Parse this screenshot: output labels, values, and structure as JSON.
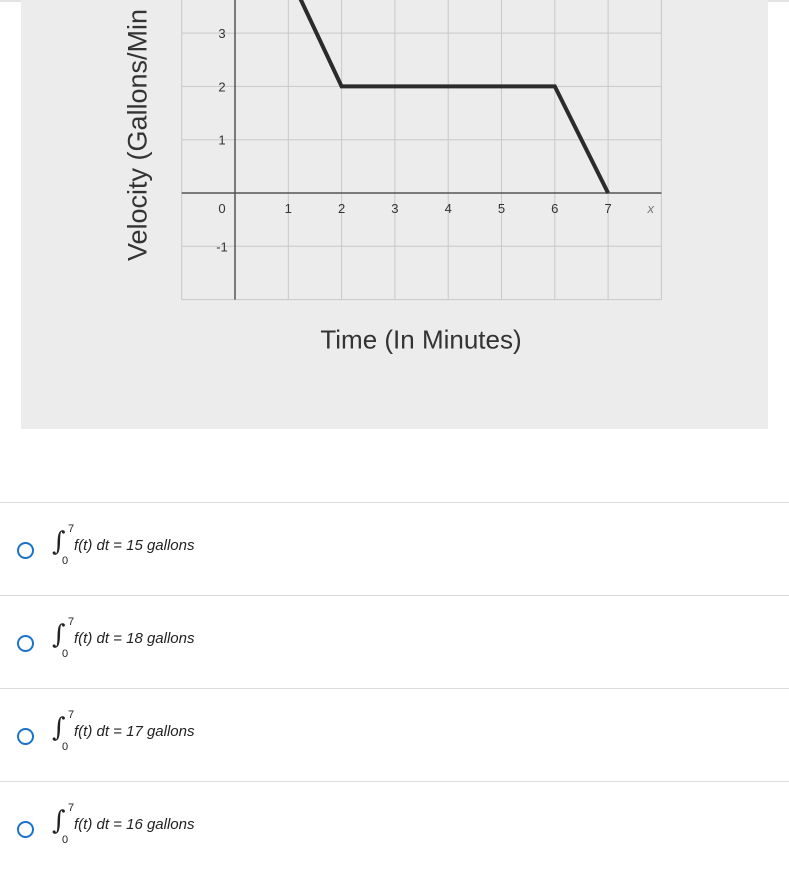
{
  "graph": {
    "y_axis_label": "Velocity (Gallons/Min",
    "x_axis_label": "Time (In Minutes)",
    "x_axis_symbol": "x",
    "line_color": "#2b2b2b",
    "grid_color": "#c8c8c8",
    "panel_color": "#ececec"
  },
  "chart_data": {
    "type": "line",
    "x": [
      1.2,
      2,
      3,
      4,
      5,
      6,
      7
    ],
    "y": [
      3.7,
      2,
      2,
      2,
      2,
      2,
      0
    ],
    "xlim": [
      -1,
      8
    ],
    "ylim": [
      -2,
      3.5
    ],
    "x_ticks": [
      "1",
      "2",
      "3",
      "4",
      "5",
      "6",
      "7"
    ],
    "y_ticks": [
      "3",
      "2",
      "1",
      "0",
      "-1"
    ],
    "xlabel": "Time (In Minutes)",
    "ylabel": "Velocity (Gallons/Min",
    "grid": true
  },
  "choices": [
    {
      "upper": "7",
      "lower": "0",
      "expr": "f(t) dt = 15 gallons"
    },
    {
      "upper": "7",
      "lower": "0",
      "expr": "f(t) dt = 18 gallons"
    },
    {
      "upper": "7",
      "lower": "0",
      "expr": "f(t) dt = 17 gallons"
    },
    {
      "upper": "7",
      "lower": "0",
      "expr": "f(t) dt = 16 gallons"
    }
  ],
  "accent_color": "#1a73c8"
}
